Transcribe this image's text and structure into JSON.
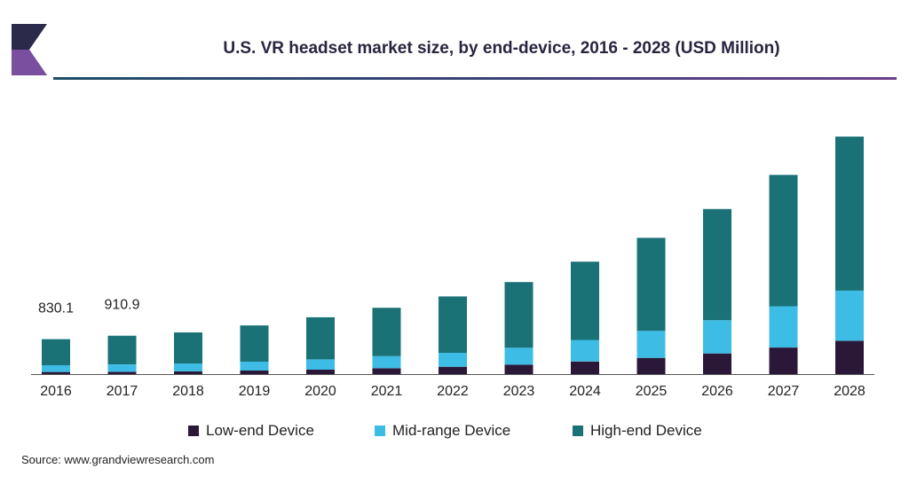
{
  "colors": {
    "low": "#2b1838",
    "mid": "#3dbde6",
    "high": "#1a7277",
    "logo_dark": "#2b2a4a",
    "logo_purple": "#7a4fa0"
  },
  "chart_data": {
    "type": "bar",
    "stacked": true,
    "title": "U.S. VR headset market size, by end-device, 2016 - 2028 (USD Million)",
    "xlabel": "",
    "ylabel": "",
    "categories": [
      "2016",
      "2017",
      "2018",
      "2019",
      "2020",
      "2021",
      "2022",
      "2023",
      "2024",
      "2025",
      "2026",
      "2027",
      "2028"
    ],
    "series": [
      {
        "name": "Low-end Device",
        "color": "#2b1838",
        "values": [
          50,
          55,
          65,
          85,
          105,
          140,
          175,
          225,
          300,
          385,
          490,
          630,
          790
        ]
      },
      {
        "name": "Mid-range Device",
        "color": "#3dbde6",
        "values": [
          160,
          175,
          185,
          210,
          245,
          285,
          330,
          400,
          510,
          640,
          790,
          980,
          1190
        ]
      },
      {
        "name": "High-end Device",
        "color": "#1a7277",
        "values": [
          620,
          681,
          740,
          860,
          1000,
          1150,
          1340,
          1560,
          1860,
          2210,
          2640,
          3120,
          3660
        ]
      }
    ],
    "data_labels": [
      {
        "category": "2016",
        "text": "830.1"
      },
      {
        "category": "2017",
        "text": "910.9"
      }
    ],
    "ylim": [
      0,
      6000
    ],
    "grid": false,
    "legend_position": "bottom"
  },
  "footer": {
    "source": "Source: www.grandviewresearch.com"
  }
}
